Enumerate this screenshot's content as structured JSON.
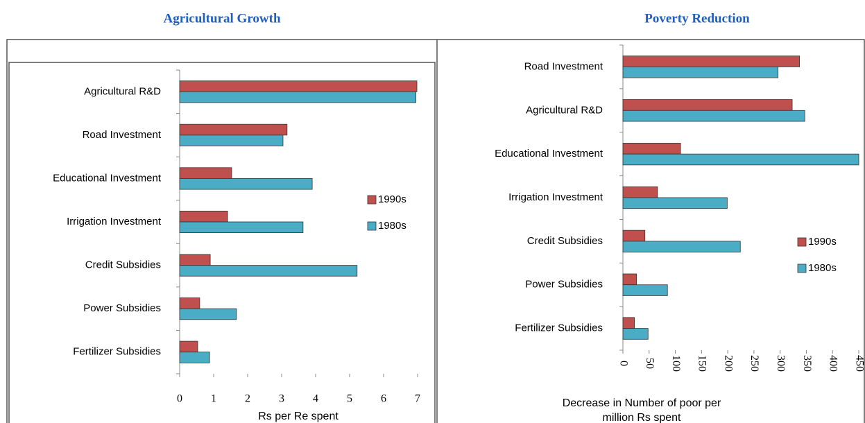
{
  "chart_data": [
    {
      "type": "barh",
      "title": "Agricultural Growth",
      "categories": [
        "Agricultural R&D",
        "Road Investment",
        "Educational Investment",
        "Irrigation Investment",
        "Credit Subsidies",
        "Power Subsidies",
        "Fertilizer Subsidies"
      ],
      "series": [
        {
          "name": "1990s",
          "color": "#c0504d",
          "values": [
            6.98,
            3.16,
            1.53,
            1.41,
            0.9,
            0.59,
            0.53
          ]
        },
        {
          "name": "1980s",
          "color": "#4bacc6",
          "values": [
            6.95,
            3.04,
            3.9,
            3.63,
            5.22,
            1.67,
            0.88
          ]
        }
      ],
      "xlim": [
        0,
        7
      ],
      "xticks": [
        0,
        1,
        2,
        3,
        4,
        5,
        6,
        7
      ],
      "xlabel": [
        "Rs per Re spent"
      ],
      "legend": "right"
    },
    {
      "type": "barh",
      "title": "Poverty Reduction",
      "categories": [
        "Road Investment",
        "Agricultural R&D",
        "Educational Investment",
        "Irrigation Investment",
        "Credit Subsidies",
        "Power Subsidies",
        "Fertilizer Subsidies"
      ],
      "series": [
        {
          "name": "1990s",
          "color": "#c0504d",
          "values": [
            337,
            323,
            110,
            66,
            42,
            26,
            22
          ]
        },
        {
          "name": "1980s",
          "color": "#4bacc6",
          "values": [
            296,
            347,
            450,
            199,
            224,
            85,
            48
          ]
        }
      ],
      "xlim": [
        0,
        450
      ],
      "xticks": [
        0,
        50,
        100,
        150,
        200,
        250,
        300,
        350,
        400,
        450
      ],
      "xlabel": [
        "Decrease in Number of poor per",
        "million Rs spent"
      ],
      "legend": "right",
      "rotated_ticks": true
    }
  ]
}
